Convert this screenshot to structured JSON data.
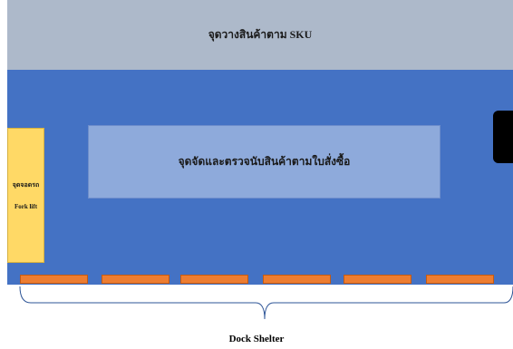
{
  "zones": {
    "sku_storage": "จุดวางสินค้าตาม SKU",
    "picking_checking": "จุดจัดและตรวจนับสินค้าตามใบสั่งซื้อ",
    "forklift_parking": [
      "จุดจอดรถ",
      "Fork lift"
    ]
  },
  "dock": {
    "label": "Dock Shelter",
    "door_count": 6
  },
  "colors": {
    "sku_zone": "#adb9ca",
    "floor": "#4472c4",
    "picking_zone": "#8eaadb",
    "forklift_zone": "#ffd966",
    "dock_door": "#ed7d31"
  }
}
